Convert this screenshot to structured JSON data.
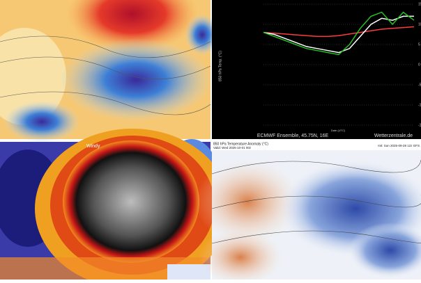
{
  "chart_data": {
    "type": "line",
    "caption": "ECMWF Ensemble, 45.75N, 16E",
    "source": "Wetterzentrale.de",
    "xlabel": "Date (UTC)",
    "ylabel": "850 hPa Temp. (°C)",
    "ylim": [
      -15,
      15
    ],
    "yticks": [
      -15,
      -10,
      -5,
      0,
      5,
      10,
      15
    ],
    "grid": true,
    "series": [
      {
        "color": "#ff3b3b",
        "values": [
          8,
          7.8,
          7.6,
          7.4,
          7.2,
          7,
          7,
          7.2,
          7.6,
          8,
          8.4,
          8.8,
          9,
          9.2,
          9.4
        ]
      },
      {
        "color": "#ffffff",
        "values": [
          8,
          7.5,
          6.5,
          5.5,
          4.5,
          4,
          3.5,
          3,
          4,
          7,
          10,
          11.5,
          11,
          12,
          12
        ]
      },
      {
        "color": "#22c422",
        "values": [
          8,
          7,
          6,
          5,
          4,
          3.5,
          3,
          2.5,
          5,
          9,
          12,
          13,
          10,
          13,
          11
        ]
      }
    ]
  },
  "windy_map": {
    "logo": "Windy"
  },
  "gfs_map": {
    "title": "850 hPa Temperature Anomaly (°C)",
    "init": "Init: Sun 2025-09-28 12z GFS",
    "valid": "Valid: Wed 2025-10-01 00z"
  }
}
